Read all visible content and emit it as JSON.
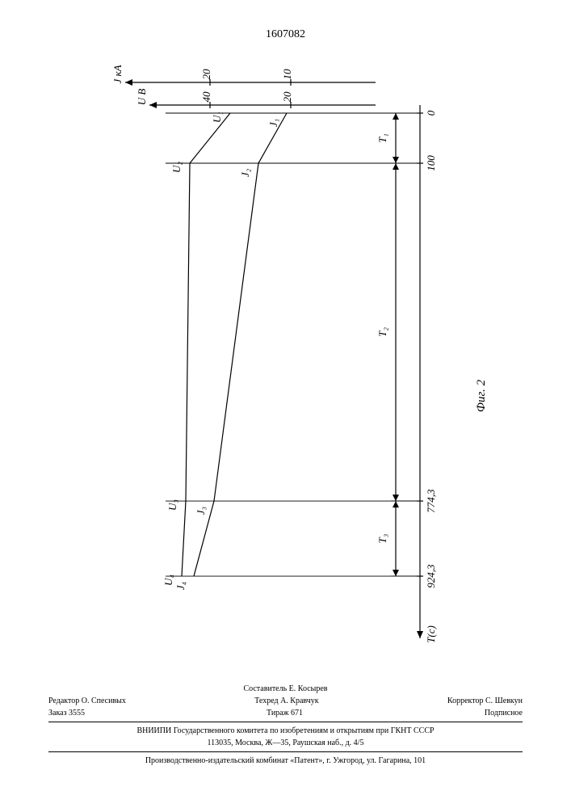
{
  "page_number": "1607082",
  "figure_label": "Фиг. 2",
  "chart": {
    "type": "line",
    "background_color": "#ffffff",
    "stroke_color": "#000000",
    "stroke_width": 1.2,
    "font_family": "Times New Roman, serif",
    "font_size_axis": 13,
    "font_size_point": 13,
    "axes": {
      "y1": {
        "label": "J кА",
        "ticks": [
          10,
          20
        ],
        "range": [
          0,
          25
        ]
      },
      "y2": {
        "label": "U В",
        "ticks": [
          20,
          40
        ],
        "range": [
          0,
          50
        ]
      },
      "x": {
        "label": "T(c)",
        "ticks": [
          0,
          100,
          "774,3",
          "924,3"
        ],
        "range": [
          0,
          1000
        ]
      }
    },
    "series_U": {
      "points": [
        {
          "t": 0,
          "v": 35,
          "lbl": "U₁"
        },
        {
          "t": 100,
          "v": 45,
          "lbl": "U₂"
        },
        {
          "t": 774.3,
          "v": 46,
          "lbl": "U₃"
        },
        {
          "t": 924.3,
          "v": 47,
          "lbl": "U₄"
        }
      ]
    },
    "series_J": {
      "points": [
        {
          "t": 0,
          "v": 10.5,
          "lbl": "J₁"
        },
        {
          "t": 100,
          "v": 14,
          "lbl": "J₂"
        },
        {
          "t": 774.3,
          "v": 19.5,
          "lbl": "J₃"
        },
        {
          "t": 924.3,
          "v": 22,
          "lbl": "J₄"
        }
      ]
    },
    "intervals": [
      {
        "lbl": "T₁",
        "from": 0,
        "to": 100
      },
      {
        "lbl": "T₂",
        "from": 100,
        "to": 774.3
      },
      {
        "lbl": "T₃",
        "from": 774.3,
        "to": 924.3
      }
    ]
  },
  "footer": {
    "compiler": "Составитель Е. Косырев",
    "editor": "Редактор О. Спесивых",
    "tech": "Техред А. Кравчук",
    "corrector": "Корректор С. Шевкун",
    "order": "Заказ 3555",
    "tirazh": "Тираж 671",
    "sub": "Подписное",
    "org1": "ВНИИПИ Государственного комитета по изобретениям и открытиям при ГКНТ СССР",
    "addr1": "113035, Москва, Ж—35, Раушская наб., д. 4/5",
    "org2": "Производственно-издательский комбинат «Патент», г. Ужгород, ул. Гагарина, 101"
  }
}
